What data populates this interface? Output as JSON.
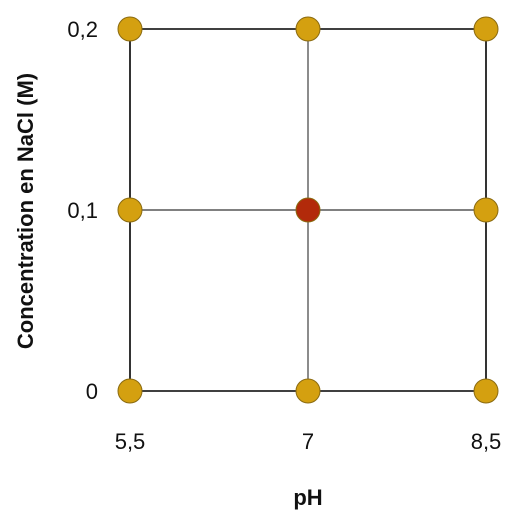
{
  "chart_data": {
    "type": "scatter",
    "title": "",
    "xlabel": "pH",
    "ylabel": "Concentration en NaCl (M)",
    "x_ticks": [
      {
        "value": 5.5,
        "label": "5,5"
      },
      {
        "value": 7,
        "label": "7"
      },
      {
        "value": 8.5,
        "label": "8,5"
      }
    ],
    "y_ticks": [
      {
        "value": 0,
        "label": "0"
      },
      {
        "value": 0.1,
        "label": "0,1"
      },
      {
        "value": 0.2,
        "label": "0,2"
      }
    ],
    "xlim": [
      5.5,
      8.5
    ],
    "ylim": [
      0,
      0.2
    ],
    "grid": true,
    "points": [
      {
        "x": 5.5,
        "y": 0.2,
        "color": "#D4A010"
      },
      {
        "x": 7,
        "y": 0.2,
        "color": "#D4A010"
      },
      {
        "x": 8.5,
        "y": 0.2,
        "color": "#D4A010"
      },
      {
        "x": 5.5,
        "y": 0.1,
        "color": "#D4A010"
      },
      {
        "x": 7,
        "y": 0.1,
        "color": "#B22A0A"
      },
      {
        "x": 8.5,
        "y": 0.1,
        "color": "#D4A010"
      },
      {
        "x": 5.5,
        "y": 0,
        "color": "#D4A010"
      },
      {
        "x": 7,
        "y": 0,
        "color": "#D4A010"
      },
      {
        "x": 8.5,
        "y": 0,
        "color": "#D4A010"
      }
    ]
  }
}
